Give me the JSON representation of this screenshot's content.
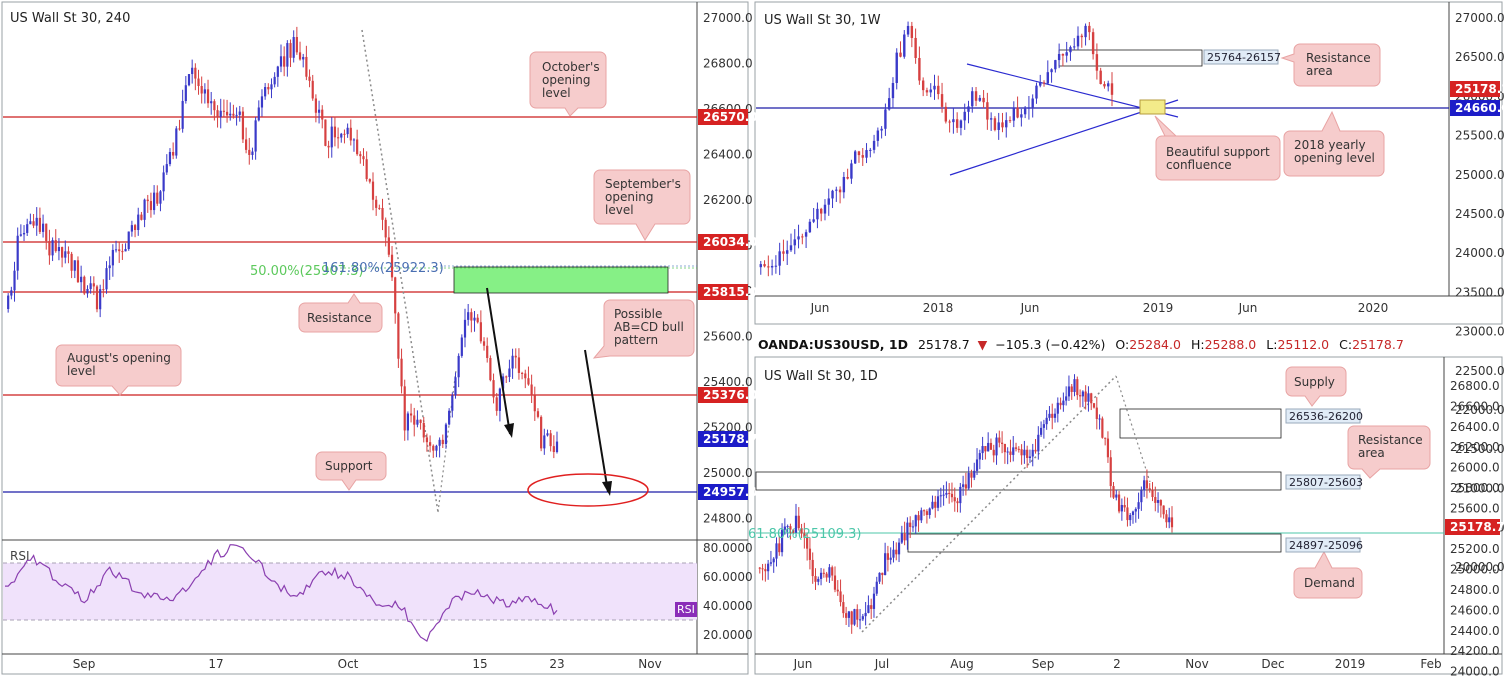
{
  "panels": {
    "h4": {
      "title": "US Wall St 30, 240",
      "y_ticks": [
        "27000.0",
        "26800.0",
        "26600.0",
        "26400.0",
        "26200.0",
        "26000.0",
        "25800.0",
        "25600.0",
        "25400.0",
        "25200.0",
        "25000.0",
        "24800.0"
      ],
      "x_ticks": [
        "Sep",
        "17",
        "Oct",
        "15",
        "23",
        "Nov"
      ],
      "level_tags": [
        "26570.0",
        "26034.0",
        "25815.0",
        "25376.0",
        "24957.0"
      ],
      "price_tag": "25178.7",
      "fib_text_green": "50.00%(25907.3)",
      "fib_text_blue": "161.80%(25922.3)",
      "callouts": {
        "october": "October's opening level",
        "september": "September's opening level",
        "resistance": "Resistance",
        "august": "August's opening level",
        "abcd": "Possible AB=CD bull pattern",
        "support": "Support"
      },
      "rsi_title": "RSI",
      "rsi_ticks": [
        "80.0000",
        "60.0000",
        "40.0000",
        "20.0000"
      ],
      "rsi_badge": "RSI"
    },
    "weekly": {
      "title": "US Wall St 30, 1W",
      "y_ticks": [
        "27000.0",
        "26500.0",
        "26000.0",
        "25500.0",
        "25000.0",
        "24500.0",
        "24000.0",
        "23500.0",
        "23000.0",
        "22500.0",
        "22000.0",
        "21500.0",
        "21000.0",
        "20500.0",
        "20000.0"
      ],
      "x_ticks": [
        "Jun",
        "2018",
        "Jun",
        "2019",
        "Jun",
        "2020"
      ],
      "zone_tag": "25764-26157",
      "price_tag": "25178.2",
      "level_tag": "24660.0",
      "callouts": {
        "resistance": "Resistance area",
        "confluence": "Beautiful support confluence",
        "yearly": "2018 yearly opening level"
      }
    },
    "daily": {
      "header": {
        "symbol": "OANDA:US30USD, 1D",
        "last": "25178.7",
        "change": "−105.3 (−0.42%)",
        "o_label": "O:",
        "o": "25284.0",
        "h_label": "H:",
        "h": "25288.0",
        "l_label": "L:",
        "l": "25112.0",
        "c_label": "C:",
        "c": "25178.7"
      },
      "title": "US Wall St 30, 1D",
      "y_ticks": [
        "26800.0",
        "26600.0",
        "26400.0",
        "26200.0",
        "26000.0",
        "25800.0",
        "25600.0",
        "25400.0",
        "25200.0",
        "25000.0",
        "24800.0",
        "24600.0",
        "24400.0",
        "24200.0",
        "24000.0"
      ],
      "x_ticks": [
        "Jun",
        "Jul",
        "Aug",
        "Sep",
        "2",
        "Nov",
        "Dec",
        "2019",
        "Feb"
      ],
      "zone_tags": [
        "26536-26200",
        "25807-25603",
        "24897-25096"
      ],
      "price_tag": "25178.7",
      "fib_text": "61.80%(25109.3)",
      "callouts": {
        "supply": "Supply",
        "resistance": "Resistance area",
        "demand": "Demand"
      }
    }
  },
  "colors": {
    "bull": "#3a3ac9",
    "bear": "#d64040",
    "resistance_line": "#cc1f1f",
    "support_line": "#1c1ca8",
    "callout_fill": "#f6cccc",
    "callout_border": "#e8a3a3",
    "green_zone": "#86f086",
    "rsi_line": "#8a3fb0",
    "rsi_band": "#f0e2fb",
    "fib_green": "#5cc95c",
    "fib_teal": "#4cc7a9",
    "confluence": "#f3eb8a"
  }
}
